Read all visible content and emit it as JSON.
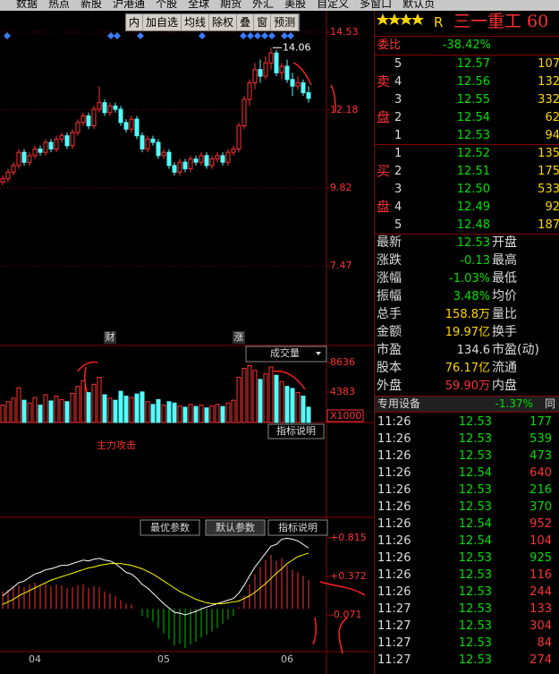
{
  "menu": [
    "数据",
    "热点",
    "新股",
    "沪港通",
    "个股",
    "全球",
    "期货",
    "外汇",
    "美股",
    "自定义",
    "多窗口",
    "默认页"
  ],
  "toolbar": [
    "内",
    "加自选",
    "均线",
    "除权",
    "叠",
    "窗",
    "预测"
  ],
  "chart_data": [
    {
      "type": "candlestick",
      "categories": [
        null,
        null,
        null,
        null,
        null,
        null,
        "04",
        null,
        null,
        null,
        null,
        null,
        null,
        null,
        null,
        null,
        null,
        null,
        null,
        null,
        null,
        null,
        null,
        null,
        null,
        null,
        null,
        null,
        null,
        null,
        "05",
        null,
        null,
        null,
        null,
        null,
        null,
        null,
        null,
        null,
        null,
        null,
        null,
        null,
        null,
        null,
        null,
        null,
        null,
        null,
        null,
        null,
        null,
        "06",
        null,
        null,
        null,
        null
      ],
      "markers": [
        null,
        null,
        null,
        null,
        null,
        null,
        null,
        null,
        null,
        null,
        null,
        null,
        null,
        null,
        null,
        null,
        null,
        null,
        null,
        null,
        "财",
        null,
        null,
        null,
        null,
        null,
        null,
        null,
        null,
        null,
        null,
        null,
        null,
        null,
        null,
        null,
        null,
        null,
        null,
        null,
        null,
        null,
        null,
        null,
        "涨",
        null,
        null,
        null,
        null,
        null,
        null,
        null,
        null,
        null,
        null,
        null,
        null,
        null
      ],
      "ohlc": [
        [
          10.0,
          10.2,
          9.9,
          10.1
        ],
        [
          10.1,
          10.4,
          10.0,
          10.3
        ],
        [
          10.3,
          10.6,
          10.2,
          10.5
        ],
        [
          10.5,
          11.0,
          10.4,
          10.9
        ],
        [
          10.9,
          11.0,
          10.5,
          10.6
        ],
        [
          10.6,
          10.9,
          10.5,
          10.8
        ],
        [
          10.8,
          11.1,
          10.7,
          11.0
        ],
        [
          11.0,
          11.1,
          10.8,
          10.9
        ],
        [
          10.9,
          11.3,
          10.8,
          11.2
        ],
        [
          11.2,
          11.3,
          10.9,
          11.0
        ],
        [
          11.0,
          11.4,
          10.9,
          11.3
        ],
        [
          11.3,
          11.5,
          11.2,
          11.4
        ],
        [
          11.4,
          11.5,
          11.0,
          11.1
        ],
        [
          11.1,
          11.6,
          11.0,
          11.5
        ],
        [
          11.5,
          11.9,
          11.4,
          11.8
        ],
        [
          11.8,
          12.1,
          11.7,
          12.0
        ],
        [
          12.0,
          12.1,
          11.6,
          11.7
        ],
        [
          11.7,
          12.3,
          11.6,
          12.2
        ],
        [
          12.2,
          12.9,
          12.1,
          12.4
        ],
        [
          12.4,
          12.5,
          12.0,
          12.1
        ],
        [
          12.1,
          12.4,
          12.0,
          12.3
        ],
        [
          12.3,
          12.4,
          12.1,
          12.2
        ],
        [
          12.2,
          12.3,
          11.7,
          11.8
        ],
        [
          11.8,
          11.9,
          11.5,
          11.6
        ],
        [
          11.6,
          12.0,
          11.5,
          11.9
        ],
        [
          11.9,
          12.0,
          11.3,
          11.4
        ],
        [
          11.4,
          11.5,
          10.9,
          11.0
        ],
        [
          11.0,
          11.4,
          10.9,
          11.3
        ],
        [
          11.3,
          11.4,
          11.1,
          11.2
        ],
        [
          11.2,
          11.3,
          10.7,
          10.8
        ],
        [
          10.8,
          11.0,
          10.7,
          10.9
        ],
        [
          10.9,
          11.0,
          10.4,
          10.5
        ],
        [
          10.5,
          10.6,
          10.2,
          10.3
        ],
        [
          10.3,
          10.7,
          10.2,
          10.6
        ],
        [
          10.6,
          10.7,
          10.3,
          10.4
        ],
        [
          10.4,
          10.8,
          10.3,
          10.7
        ],
        [
          10.7,
          10.8,
          10.5,
          10.6
        ],
        [
          10.6,
          10.9,
          10.5,
          10.8
        ],
        [
          10.8,
          10.9,
          10.4,
          10.5
        ],
        [
          10.5,
          10.8,
          10.4,
          10.7
        ],
        [
          10.7,
          10.9,
          10.6,
          10.8
        ],
        [
          10.8,
          10.9,
          10.5,
          10.6
        ],
        [
          10.6,
          11.0,
          10.5,
          10.9
        ],
        [
          10.9,
          11.1,
          10.8,
          11.0
        ],
        [
          11.0,
          11.8,
          10.9,
          11.7
        ],
        [
          11.7,
          12.6,
          11.6,
          12.5
        ],
        [
          12.5,
          13.1,
          12.3,
          13.0
        ],
        [
          13.0,
          13.6,
          12.8,
          13.4
        ],
        [
          13.4,
          13.7,
          13.0,
          13.2
        ],
        [
          13.2,
          13.8,
          13.1,
          13.6
        ],
        [
          13.6,
          14.06,
          13.4,
          13.9
        ],
        [
          13.9,
          14.0,
          13.2,
          13.3
        ],
        [
          13.3,
          13.6,
          13.1,
          13.5
        ],
        [
          13.5,
          13.7,
          13.0,
          13.1
        ],
        [
          13.1,
          13.3,
          12.6,
          12.9
        ],
        [
          12.9,
          13.2,
          12.8,
          13.0
        ],
        [
          13.0,
          13.1,
          12.6,
          12.7
        ],
        [
          12.7,
          12.9,
          12.4,
          12.53
        ]
      ],
      "up_color": "#ff3232",
      "down_color": "#54fcfc",
      "grid": true,
      "ylim": [
        5.09,
        14.69
      ],
      "yticks": [
        7.47,
        9.82,
        12.18,
        14.53
      ]
    },
    {
      "type": "bar",
      "title": "成交量",
      "unit": "X1000",
      "note": "指标说明",
      "values": [
        2500,
        3000,
        3500,
        5000,
        3200,
        2800,
        3600,
        2500,
        4000,
        3100,
        3800,
        3300,
        3000,
        4200,
        5200,
        6000,
        4300,
        5500,
        6500,
        4000,
        3500,
        3200,
        4500,
        3800,
        3600,
        4100,
        4400,
        3000,
        2600,
        3300,
        2500,
        3000,
        2800,
        2400,
        2200,
        2600,
        2300,
        2500,
        2100,
        2400,
        2600,
        2300,
        2800,
        3200,
        6500,
        7800,
        8200,
        7500,
        6200,
        7000,
        8000,
        6800,
        5900,
        5200,
        4900,
        4300,
        3800,
        2200
      ],
      "ylim": [
        0,
        9925
      ],
      "yticks": [
        4383,
        8636
      ],
      "grid": false
    },
    {
      "type": "macd",
      "title": "主力攻击",
      "buttons": [
        "最优参数",
        "默认参数",
        "指标说明"
      ],
      "hist": [
        0.2,
        0.22,
        0.25,
        0.27,
        0.25,
        0.28,
        0.3,
        0.27,
        0.29,
        0.26,
        0.28,
        0.27,
        0.24,
        0.25,
        0.27,
        0.28,
        0.24,
        0.26,
        0.25,
        0.2,
        0.18,
        0.15,
        0.1,
        0.06,
        0.05,
        0.0,
        -0.08,
        -0.1,
        -0.15,
        -0.22,
        -0.28,
        -0.35,
        -0.42,
        -0.4,
        -0.45,
        -0.41,
        -0.38,
        -0.33,
        -0.3,
        -0.26,
        -0.22,
        -0.17,
        -0.12,
        -0.08,
        0.02,
        0.15,
        0.28,
        0.4,
        0.48,
        0.56,
        0.62,
        0.55,
        0.58,
        0.5,
        0.45,
        0.42,
        0.38,
        0.33
      ],
      "dif": [
        0.15,
        0.2,
        0.25,
        0.3,
        0.32,
        0.36,
        0.4,
        0.42,
        0.45,
        0.46,
        0.48,
        0.5,
        0.5,
        0.52,
        0.54,
        0.56,
        0.55,
        0.57,
        0.58,
        0.56,
        0.55,
        0.52,
        0.47,
        0.42,
        0.4,
        0.35,
        0.28,
        0.24,
        0.18,
        0.12,
        0.06,
        0.01,
        -0.04,
        -0.05,
        -0.07,
        -0.05,
        -0.03,
        0.0,
        0.02,
        0.04,
        0.06,
        0.08,
        0.1,
        0.12,
        0.18,
        0.27,
        0.38,
        0.48,
        0.56,
        0.64,
        0.72,
        0.74,
        0.8,
        0.81,
        0.8,
        0.78,
        0.74,
        0.7
      ],
      "dea": [
        0.05,
        0.08,
        0.11,
        0.15,
        0.18,
        0.21,
        0.24,
        0.27,
        0.3,
        0.33,
        0.35,
        0.37,
        0.39,
        0.41,
        0.43,
        0.45,
        0.47,
        0.48,
        0.5,
        0.51,
        0.52,
        0.52,
        0.52,
        0.51,
        0.5,
        0.48,
        0.46,
        0.43,
        0.4,
        0.36,
        0.32,
        0.28,
        0.24,
        0.2,
        0.17,
        0.14,
        0.11,
        0.09,
        0.07,
        0.06,
        0.06,
        0.06,
        0.07,
        0.08,
        0.09,
        0.12,
        0.15,
        0.19,
        0.24,
        0.29,
        0.35,
        0.41,
        0.46,
        0.52,
        0.56,
        0.6,
        0.62,
        0.64
      ],
      "dif_color": "#ffffff",
      "dea_color": "#ffff00",
      "up_color": "#ff3232",
      "down_color": "#00c000",
      "ylim": [
        -0.666,
        0.979
      ],
      "yticks": [
        {
          "value": -0.071,
          "label": "-0.071"
        },
        {
          "value": 0.372,
          "label": "+0.372"
        },
        {
          "value": 0.815,
          "label": "+0.815"
        }
      ],
      "grid": false
    }
  ],
  "quote": {
    "tag": "R",
    "name": "三一重工 60",
    "weibi": [
      "委比",
      "-38.42%"
    ],
    "sell_label": [
      "卖",
      "盘"
    ],
    "buy_label": [
      "买",
      "盘"
    ],
    "sell": [
      [
        "5",
        "12.57",
        "107"
      ],
      [
        "4",
        "12.56",
        "132"
      ],
      [
        "3",
        "12.55",
        "332"
      ],
      [
        "2",
        "12.54",
        "62"
      ],
      [
        "1",
        "12.53",
        "94"
      ]
    ],
    "buy": [
      [
        "1",
        "12.52",
        "135"
      ],
      [
        "2",
        "12.51",
        "175"
      ],
      [
        "3",
        "12.50",
        "533"
      ],
      [
        "4",
        "12.49",
        "92"
      ],
      [
        "5",
        "12.48",
        "187"
      ]
    ],
    "stats": [
      [
        "最新",
        "12.53",
        "开盘"
      ],
      [
        "涨跌",
        "-0.13",
        "最高"
      ],
      [
        "涨幅",
        "-1.03%",
        "最低"
      ],
      [
        "振幅",
        "3.48%",
        "均价"
      ],
      [
        "总手",
        "158.8万",
        "量比"
      ],
      [
        "金额",
        "19.97亿",
        "换手"
      ],
      [
        "市盈",
        "134.6",
        "市盈(动)"
      ],
      [
        "股本",
        "76.17亿",
        "流通"
      ],
      [
        "外盘",
        "59.90万",
        "内盘"
      ]
    ],
    "sector": [
      "专用设备",
      "-1.37%",
      "同"
    ],
    "ticks": [
      {
        "time": "11:26",
        "price": "12.53",
        "volume": "177",
        "color": "#00e000"
      },
      {
        "time": "11:26",
        "price": "12.53",
        "volume": "539",
        "color": "#00e000"
      },
      {
        "time": "11:26",
        "price": "12.53",
        "volume": "473",
        "color": "#00e000"
      },
      {
        "time": "11:26",
        "price": "12.54",
        "volume": "640",
        "color": "#ff3232"
      },
      {
        "time": "11:26",
        "price": "12.53",
        "volume": "216",
        "color": "#00e000"
      },
      {
        "time": "11:26",
        "price": "12.53",
        "volume": "370",
        "color": "#00e000"
      },
      {
        "time": "11:26",
        "price": "12.54",
        "volume": "952",
        "color": "#ff3232"
      },
      {
        "time": "11:26",
        "price": "12.54",
        "volume": "104",
        "color": "#ff3232"
      },
      {
        "time": "11:26",
        "price": "12.53",
        "volume": "925",
        "color": "#00e000"
      },
      {
        "time": "11:26",
        "price": "12.53",
        "volume": "116",
        "color": "#ff3232"
      },
      {
        "time": "11:26",
        "price": "12.53",
        "volume": "244",
        "color": "#ff3232"
      },
      {
        "time": "11:27",
        "price": "12.53",
        "volume": "133",
        "color": "#ff3232"
      },
      {
        "time": "11:27",
        "price": "12.53",
        "volume": "304",
        "color": "#ff3232"
      },
      {
        "time": "11:27",
        "price": "12.53",
        "volume": "84",
        "color": "#ff3232"
      },
      {
        "time": "11:27",
        "price": "12.53",
        "volume": "274",
        "color": "#ff3232"
      }
    ]
  }
}
